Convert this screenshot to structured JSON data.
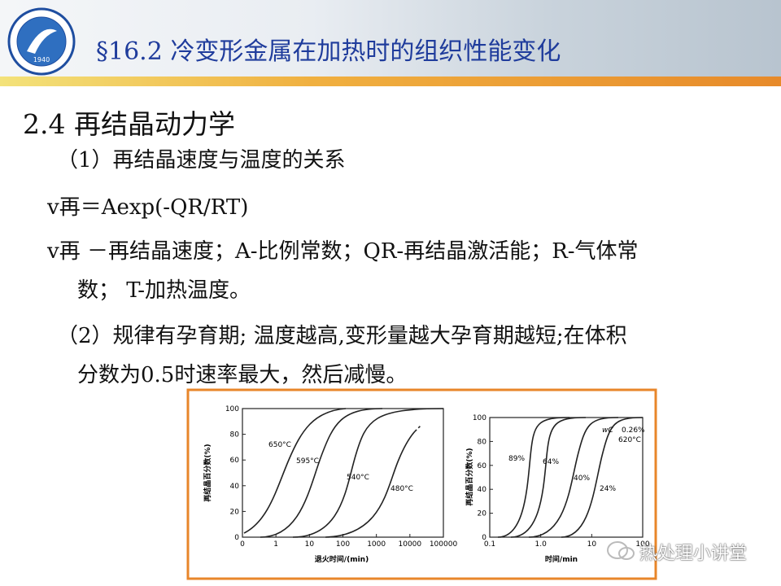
{
  "header": {
    "title": "§16.2 冷变形金属在加热时的组织性能变化",
    "logo_year": "1940"
  },
  "section": {
    "title": "2.4  再结晶动力学"
  },
  "body": {
    "lines": [
      "（1）再结晶速度与温度的关系",
      "v再＝Aexp(-QR/RT)",
      "v再 －再结晶速度；A-比例常数；QR-再结晶激活能；R-气体常",
      "数；    T-加热温度。",
      "（2）规律有孕育期; 温度越高,变形量越大孕育期越短;在体积",
      "分数为0.5时速率最大，然后减慢。"
    ]
  },
  "figure": {
    "panels": [
      {
        "ylabel": "再结晶百分数(%)",
        "xlabel": "退火时间/(min)",
        "yticks": [
          "0",
          "20",
          "40",
          "60",
          "80",
          "100"
        ],
        "xticks": [
          "0",
          "1",
          "10",
          "100",
          "1000",
          "10000",
          "100000"
        ],
        "curve_labels": [
          "650°C",
          "595°C",
          "540°C",
          "480°C"
        ]
      },
      {
        "ylabel": "再结晶百分数(%)",
        "xlabel": "时间/min",
        "yticks": [
          "0",
          "20",
          "40",
          "60",
          "80",
          "100"
        ],
        "xticks": [
          "0.1",
          "1.0",
          "10",
          "100"
        ],
        "curve_labels": [
          "89%",
          "64%",
          "40%",
          "24%",
          "0.26%",
          "620°C"
        ],
        "composition_symbol": "wC"
      }
    ]
  },
  "watermark": {
    "text": "热处理小讲堂"
  }
}
